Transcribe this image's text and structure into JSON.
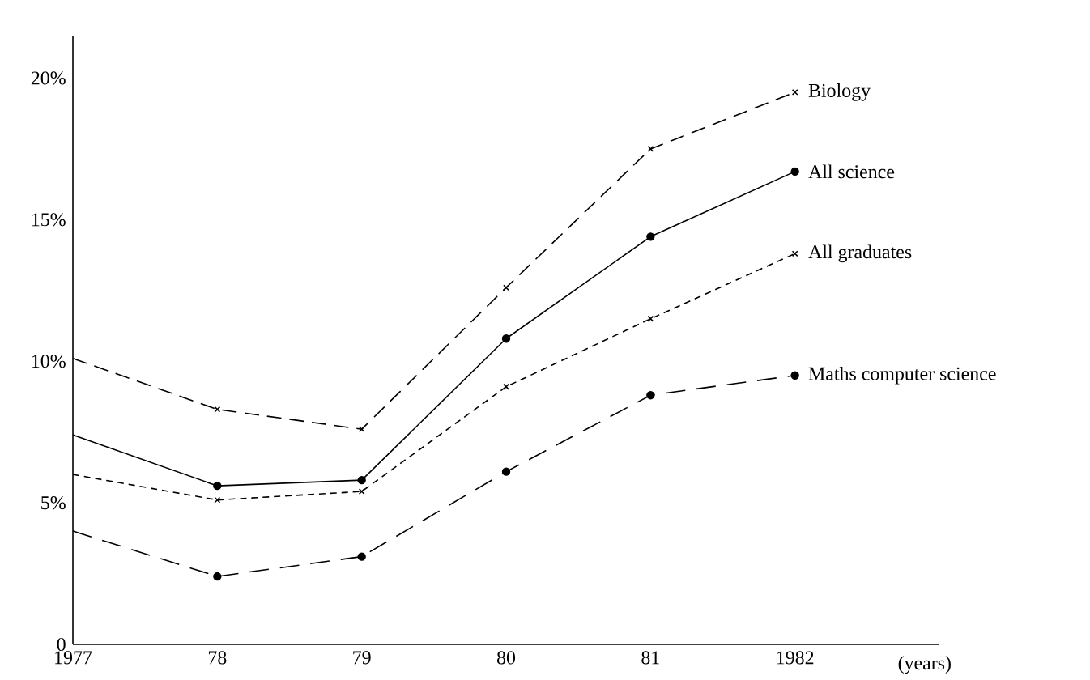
{
  "chart_data": {
    "type": "line",
    "xlabel": "(years)",
    "categories": [
      "1977",
      "78",
      "79",
      "80",
      "81",
      "1982"
    ],
    "series": [
      {
        "name": "Biology",
        "color": "#000000",
        "marker": "cross",
        "line_style": "dashed",
        "values": [
          10.1,
          8.3,
          7.6,
          12.6,
          17.5,
          19.5
        ]
      },
      {
        "name": "All science",
        "color": "#000000",
        "marker": "circle",
        "line_style": "solid",
        "values": [
          7.4,
          5.6,
          5.8,
          10.8,
          14.4,
          16.7
        ]
      },
      {
        "name": "All graduates",
        "color": "#000000",
        "marker": "cross",
        "line_style": "dashed",
        "values": [
          6.0,
          5.1,
          5.4,
          9.1,
          11.5,
          13.8
        ]
      },
      {
        "name": "Maths computer science",
        "color": "#000000",
        "marker": "circle",
        "line_style": "dashed",
        "values": [
          4.0,
          2.4,
          3.1,
          6.1,
          8.8,
          9.5
        ]
      }
    ],
    "ylim": [
      0,
      21.5
    ],
    "yticks": [
      0,
      {
        "value": 5,
        "label": "5%"
      },
      {
        "value": 10,
        "label": "10%"
      },
      {
        "value": 15,
        "label": "15%"
      },
      {
        "value": 20,
        "label": "20%"
      }
    ],
    "grid": false,
    "legend": false
  }
}
